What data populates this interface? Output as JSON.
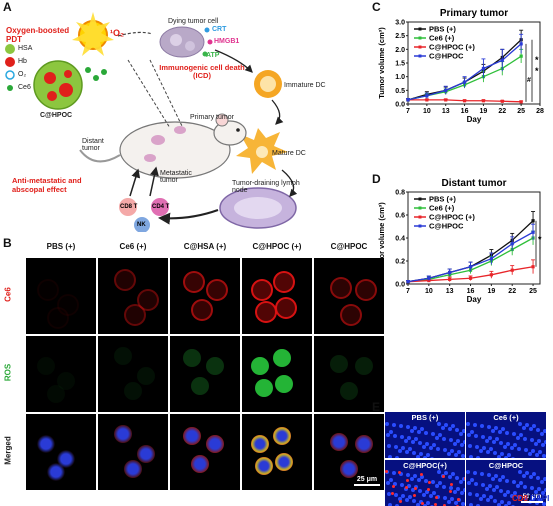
{
  "panels": {
    "A": "A",
    "B": "B",
    "C": "C",
    "D": "D",
    "E": "E"
  },
  "schematic": {
    "pdt_label": "Oxygen-boosted PDT",
    "singlet_oxygen": "¹O₂",
    "dying_cell": "Dying tumor cell",
    "crt": "CRT",
    "hmgb1": "HMGB1",
    "atp": "ATP",
    "icd": "Immunogenic cell death (ICD)",
    "immature_dc": "Immature DC",
    "mature_dc": "Mature DC",
    "primary_tumor": "Primary tumor",
    "distant_tumor": "Distant tumor",
    "metastatic_tumor": "Metastatic tumor",
    "lymph_node": "Tumor-draining lymph node",
    "antimetastatic": "Anti-metastatic and abscopal effect",
    "legend_hsa": "HSA",
    "legend_hb": "Hb",
    "legend_o2": "O₂",
    "legend_ce6": "Ce6",
    "nanoparticle": "C@HPOC",
    "cd8": "CD8 T",
    "cd4": "CD4 T",
    "nk": "NK"
  },
  "microscopy_b": {
    "columns": [
      "PBS (+)",
      "Ce6 (+)",
      "C@HSA (+)",
      "C@HPOC (+)",
      "C@HPOC"
    ],
    "rows": [
      "Ce6",
      "ROS",
      "Merged"
    ],
    "scale_bar": "25 μm"
  },
  "microscopy_e": {
    "labels": [
      "PBS (+)",
      "Ce6 (+)",
      "C@HPOC(+)",
      "C@HPOC"
    ],
    "scale_bar": "50 μm",
    "stain_cd8": "CD8",
    "stain_sep": "/",
    "stain_dapi": "DAPI"
  },
  "colors": {
    "pbs": "#111111",
    "ce6": "#2fbf3a",
    "chpoc_plus": "#e8262a",
    "chpoc": "#2a3bd6"
  },
  "chart_data": [
    {
      "type": "line",
      "title": "Primary tumor",
      "xlabel": "Day",
      "ylabel": "Tumor volume (cm³)",
      "x": [
        7,
        10,
        13,
        16,
        19,
        22,
        25
      ],
      "xticks": [
        7,
        10,
        13,
        16,
        19,
        22,
        25,
        28
      ],
      "yticks": [
        0.0,
        0.5,
        1.0,
        1.5,
        2.0,
        2.5,
        3.0
      ],
      "xlim": [
        7,
        28
      ],
      "ylim": [
        0,
        3.0
      ],
      "series": [
        {
          "name": "PBS (+)",
          "values": [
            0.15,
            0.35,
            0.5,
            0.8,
            1.2,
            1.7,
            2.35
          ],
          "err": [
            0.05,
            0.1,
            0.12,
            0.15,
            0.25,
            0.3,
            0.35
          ]
        },
        {
          "name": "Ce6 (+)",
          "values": [
            0.15,
            0.3,
            0.45,
            0.7,
            1.0,
            1.3,
            1.75
          ],
          "err": [
            0.05,
            0.08,
            0.1,
            0.12,
            0.2,
            0.25,
            0.25
          ]
        },
        {
          "name": "C@HPOC (+)",
          "values": [
            0.15,
            0.15,
            0.15,
            0.12,
            0.12,
            0.1,
            0.08
          ],
          "err": [
            0.03,
            0.03,
            0.03,
            0.03,
            0.03,
            0.03,
            0.03
          ]
        },
        {
          "name": "C@HPOC",
          "values": [
            0.15,
            0.3,
            0.5,
            0.8,
            1.3,
            1.6,
            2.2
          ],
          "err": [
            0.05,
            0.1,
            0.15,
            0.2,
            0.35,
            0.4,
            0.35
          ]
        }
      ],
      "significance": [
        "*",
        "#",
        "*"
      ]
    },
    {
      "type": "line",
      "title": "Distant tumor",
      "xlabel": "Day",
      "ylabel": "Tumor volume (cm³)",
      "x": [
        7,
        10,
        13,
        16,
        19,
        22,
        25
      ],
      "xticks": [
        7,
        10,
        13,
        16,
        19,
        22,
        25
      ],
      "yticks": [
        0.0,
        0.2,
        0.4,
        0.6,
        0.8
      ],
      "xlim": [
        7,
        26
      ],
      "ylim": [
        0,
        0.8
      ],
      "series": [
        {
          "name": "PBS (+)",
          "values": [
            0.02,
            0.05,
            0.1,
            0.15,
            0.25,
            0.38,
            0.55
          ],
          "err": [
            0.01,
            0.02,
            0.03,
            0.04,
            0.05,
            0.06,
            0.08
          ]
        },
        {
          "name": "Ce6 (+)",
          "values": [
            0.02,
            0.04,
            0.08,
            0.12,
            0.2,
            0.3,
            0.4
          ],
          "err": [
            0.01,
            0.02,
            0.02,
            0.03,
            0.04,
            0.05,
            0.06
          ]
        },
        {
          "name": "C@HPOC (+)",
          "values": [
            0.02,
            0.03,
            0.04,
            0.05,
            0.08,
            0.12,
            0.15
          ],
          "err": [
            0.01,
            0.01,
            0.02,
            0.02,
            0.03,
            0.04,
            0.06
          ]
        },
        {
          "name": "C@HPOC",
          "values": [
            0.02,
            0.05,
            0.1,
            0.15,
            0.22,
            0.35,
            0.45
          ],
          "err": [
            0.01,
            0.02,
            0.03,
            0.04,
            0.05,
            0.06,
            0.07
          ]
        }
      ],
      "significance": [
        "*"
      ]
    }
  ]
}
